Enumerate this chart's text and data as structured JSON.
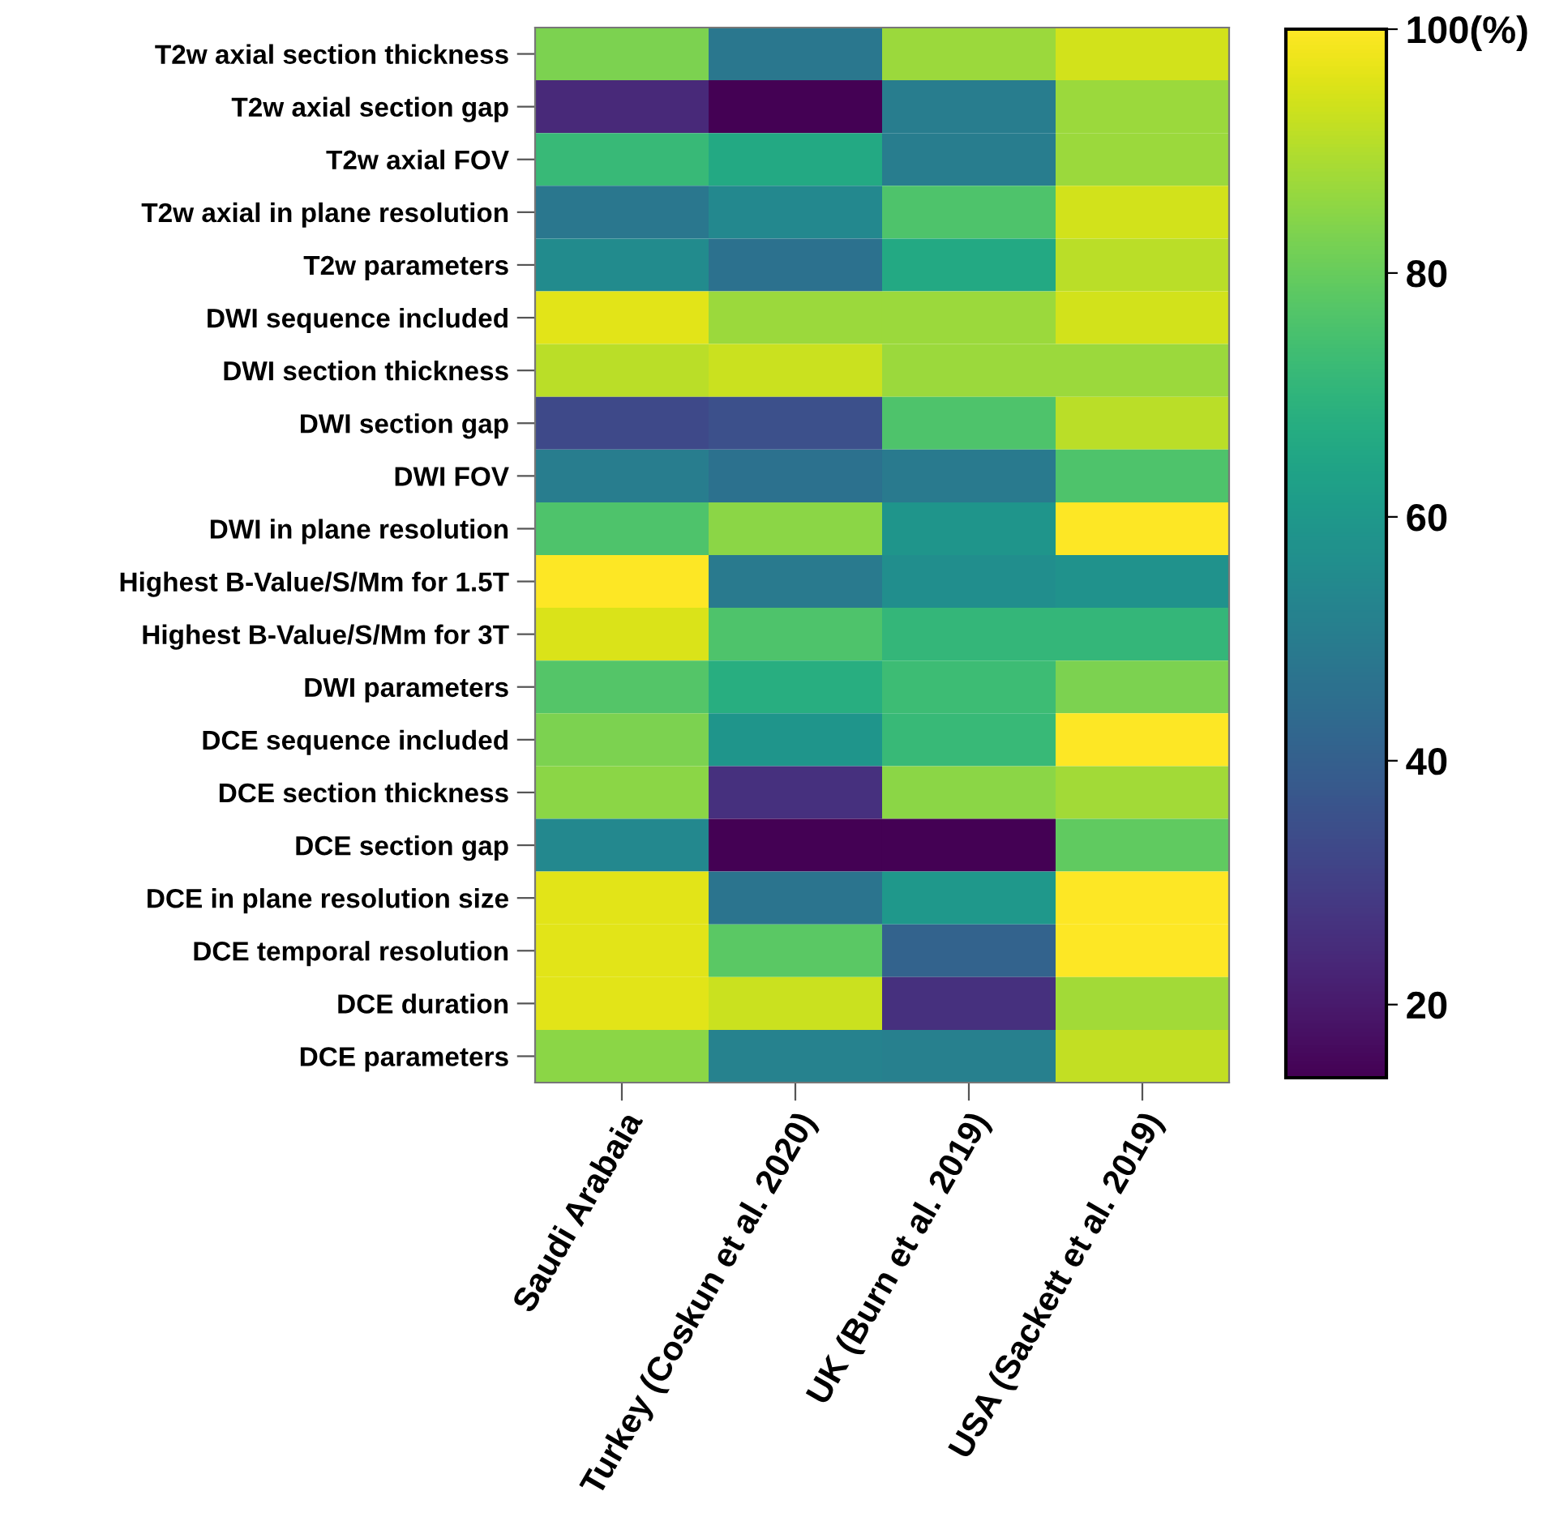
{
  "chart_data": {
    "type": "heatmap",
    "categories": [
      "Saudi Arabaia",
      "Turkey (Coskun et al. 2020)",
      "UK (Burn et al. 2019)",
      "USA (Sackett et al. 2019)"
    ],
    "y_categories": [
      "T2w axial section thickness",
      "T2w axial section gap",
      "T2w axial FOV",
      "T2w axial in plane resolution",
      "T2w parameters",
      "DWI sequence included",
      "DWI section thickness",
      "DWI section gap",
      "DWI FOV",
      "DWI in plane resolution",
      "Highest B-Value/S/Mm for 1.5T",
      "Highest B-Value/S/Mm for 3T",
      "DWI parameters",
      "DCE sequence included",
      "DCE section thickness",
      "DCE section gap",
      "DCE in plane resolution size",
      "DCE temporal resolution",
      "DCE duration",
      "DCE parameters"
    ],
    "cells": [
      [
        83,
        48,
        87,
        94
      ],
      [
        24,
        14,
        50,
        87
      ],
      [
        72,
        66,
        50,
        87
      ],
      [
        48,
        54,
        76,
        94
      ],
      [
        55,
        46,
        66,
        91
      ],
      [
        96,
        87,
        87,
        94
      ],
      [
        91,
        93,
        87,
        87
      ],
      [
        33,
        35,
        76,
        91
      ],
      [
        50,
        46,
        49,
        76
      ],
      [
        76,
        85,
        59,
        100
      ],
      [
        100,
        49,
        56,
        58
      ],
      [
        95,
        76,
        71,
        71
      ],
      [
        77,
        68,
        73,
        83
      ],
      [
        83,
        59,
        72,
        100
      ],
      [
        85,
        26,
        85,
        88
      ],
      [
        54,
        14,
        14,
        79
      ],
      [
        96,
        47,
        60,
        100
      ],
      [
        96,
        78,
        41,
        100
      ],
      [
        96,
        93,
        26,
        88
      ],
      [
        85,
        52,
        51,
        92
      ]
    ],
    "clim": [
      14,
      100
    ],
    "cticks": [
      20,
      40,
      60,
      80,
      {
        "value": 100,
        "label": "100(%)"
      }
    ]
  }
}
